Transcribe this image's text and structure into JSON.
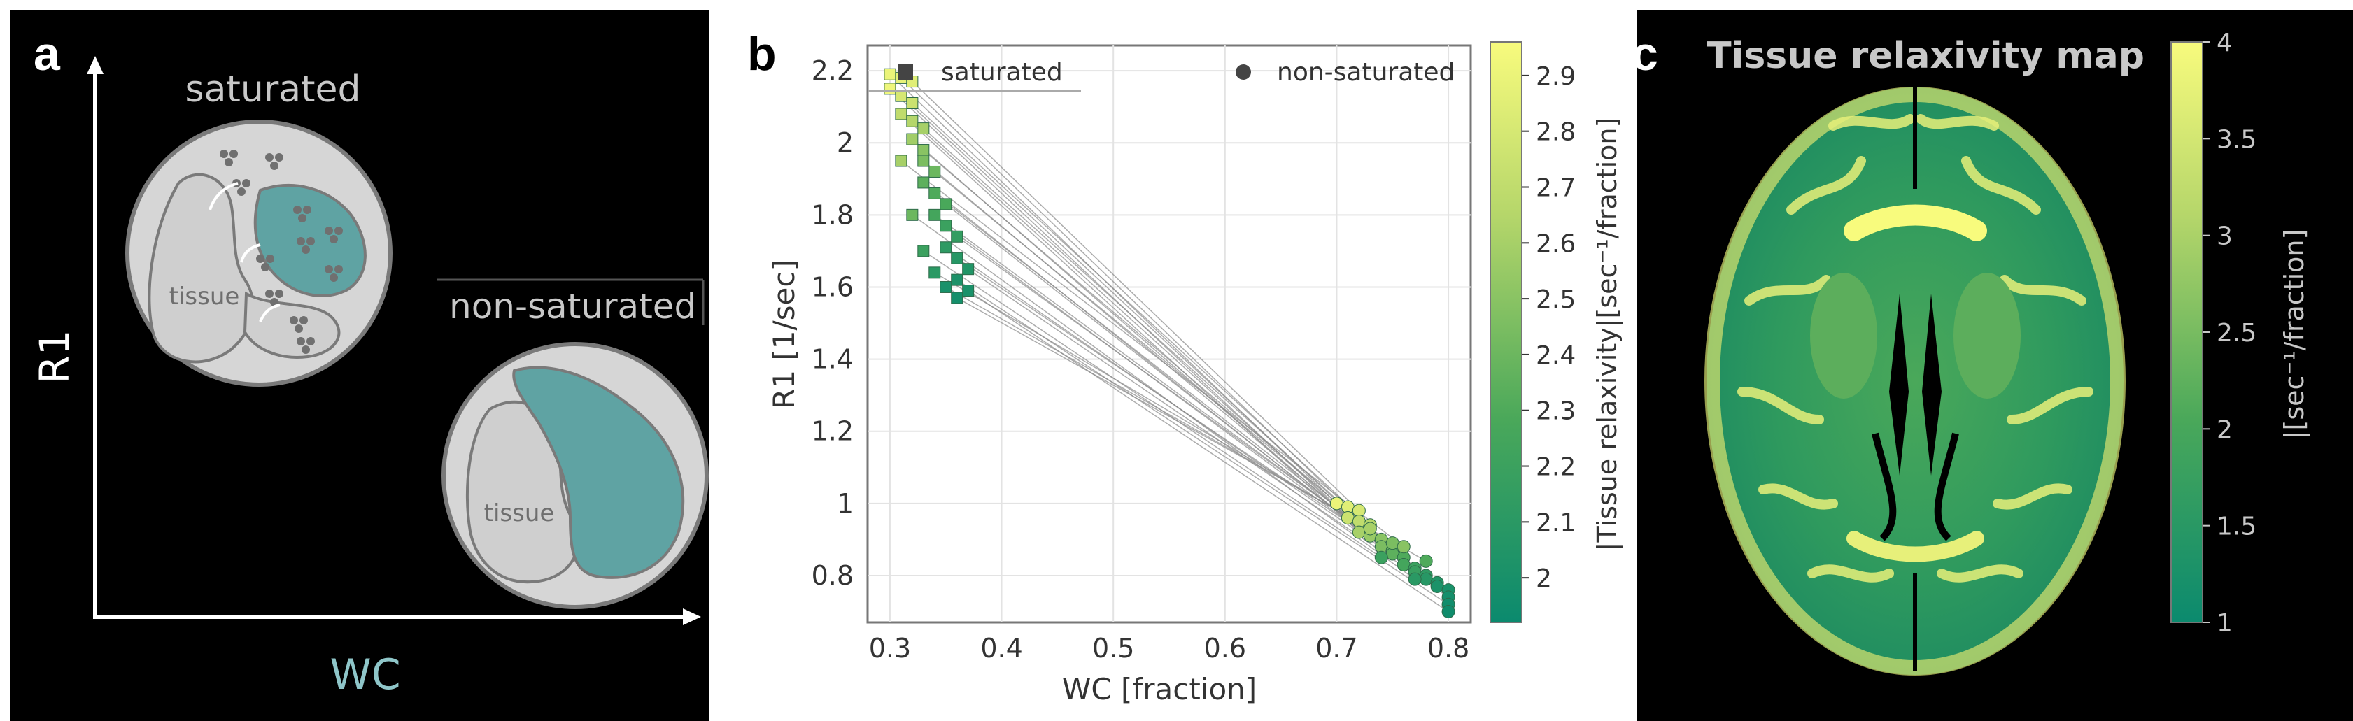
{
  "panel_a": {
    "letter": "a",
    "y_axis_label": "R1",
    "x_axis_label": "WC",
    "saturated_label": "saturated",
    "non_saturated_label": "non-saturated",
    "tissue_label": "tissue",
    "tissue_label_2": "tissue",
    "colors": {
      "water": "#5fa3a3",
      "cell": "#d6d6d6",
      "macromolecule": "#7a7a7a",
      "wc_text": "#8fc6c9"
    }
  },
  "panel_b": {
    "letter": "b",
    "legend": {
      "square_label": "saturated",
      "circle_label": "non-saturated"
    },
    "colorbar_label": "|Tissue relaxivity|[sec⁻¹/fraction]",
    "colorbar_ticks": [
      "2",
      "2.1",
      "2.2",
      "2.3",
      "2.4",
      "2.5",
      "2.6",
      "2.7",
      "2.8",
      "2.9"
    ],
    "colorbar_range": [
      1.92,
      2.96
    ],
    "x_tick_labels": [
      "0.3",
      "0.4",
      "0.5",
      "0.6",
      "0.7",
      "0.8"
    ],
    "y_tick_labels": [
      "0.8",
      "1",
      "1.2",
      "1.4",
      "1.6",
      "1.8",
      "2",
      "2.2"
    ]
  },
  "panel_c": {
    "letter": "c",
    "title": "Tissue relaxivity map",
    "colorbar_label": "|[sec⁻¹/fraction]",
    "colorbar_ticks": [
      "1",
      "1.5",
      "2",
      "2.5",
      "3",
      "3.5",
      "4"
    ],
    "colorbar_range": [
      1,
      4
    ]
  },
  "chart_data": {
    "type": "scatter",
    "title": "",
    "xlabel": "WC [fraction]",
    "ylabel": "R1 [1/sec]",
    "xlim": [
      0.28,
      0.82
    ],
    "ylim": [
      0.67,
      2.27
    ],
    "grid": true,
    "legend_position": "top",
    "series": [
      {
        "name": "saturated",
        "marker": "square",
        "points": [
          [
            0.3,
            2.19,
            2.9
          ],
          [
            0.31,
            2.18,
            2.88
          ],
          [
            0.32,
            2.17,
            2.85
          ],
          [
            0.3,
            2.15,
            2.92
          ],
          [
            0.31,
            2.13,
            2.8
          ],
          [
            0.32,
            2.11,
            2.75
          ],
          [
            0.31,
            2.08,
            2.7
          ],
          [
            0.32,
            2.06,
            2.65
          ],
          [
            0.33,
            2.04,
            2.6
          ],
          [
            0.32,
            2.01,
            2.58
          ],
          [
            0.33,
            1.98,
            2.5
          ],
          [
            0.33,
            1.95,
            2.45
          ],
          [
            0.34,
            1.92,
            2.4
          ],
          [
            0.33,
            1.89,
            2.35
          ],
          [
            0.34,
            1.86,
            2.3
          ],
          [
            0.35,
            1.83,
            2.28
          ],
          [
            0.34,
            1.8,
            2.25
          ],
          [
            0.35,
            1.77,
            2.2
          ],
          [
            0.36,
            1.74,
            2.15
          ],
          [
            0.35,
            1.71,
            2.12
          ],
          [
            0.36,
            1.68,
            2.08
          ],
          [
            0.37,
            1.65,
            2.05
          ],
          [
            0.36,
            1.62,
            2.02
          ],
          [
            0.37,
            1.59,
            2.0
          ],
          [
            0.36,
            1.57,
            1.98
          ],
          [
            0.34,
            1.64,
            2.1
          ],
          [
            0.33,
            1.7,
            2.2
          ],
          [
            0.32,
            1.8,
            2.4
          ],
          [
            0.31,
            1.95,
            2.6
          ],
          [
            0.35,
            1.6,
            2.0
          ]
        ]
      },
      {
        "name": "non-saturated",
        "marker": "circle",
        "points": [
          [
            0.7,
            1.0,
            2.9
          ],
          [
            0.71,
            0.99,
            2.85
          ],
          [
            0.72,
            0.98,
            2.8
          ],
          [
            0.71,
            0.96,
            2.75
          ],
          [
            0.72,
            0.95,
            2.7
          ],
          [
            0.73,
            0.94,
            2.65
          ],
          [
            0.72,
            0.92,
            2.6
          ],
          [
            0.73,
            0.91,
            2.55
          ],
          [
            0.74,
            0.9,
            2.5
          ],
          [
            0.74,
            0.88,
            2.45
          ],
          [
            0.75,
            0.87,
            2.4
          ],
          [
            0.75,
            0.86,
            2.35
          ],
          [
            0.76,
            0.85,
            2.3
          ],
          [
            0.76,
            0.83,
            2.25
          ],
          [
            0.77,
            0.82,
            2.2
          ],
          [
            0.77,
            0.81,
            2.18
          ],
          [
            0.78,
            0.8,
            2.12
          ],
          [
            0.78,
            0.79,
            2.08
          ],
          [
            0.79,
            0.78,
            2.05
          ],
          [
            0.79,
            0.77,
            2.02
          ],
          [
            0.8,
            0.76,
            2.0
          ],
          [
            0.8,
            0.74,
            1.98
          ],
          [
            0.8,
            0.72,
            1.96
          ],
          [
            0.8,
            0.7,
            1.95
          ],
          [
            0.73,
            0.93,
            2.6
          ],
          [
            0.75,
            0.89,
            2.45
          ],
          [
            0.74,
            0.85,
            2.2
          ],
          [
            0.77,
            0.79,
            2.1
          ],
          [
            0.76,
            0.88,
            2.5
          ],
          [
            0.78,
            0.84,
            2.3
          ]
        ]
      }
    ]
  }
}
